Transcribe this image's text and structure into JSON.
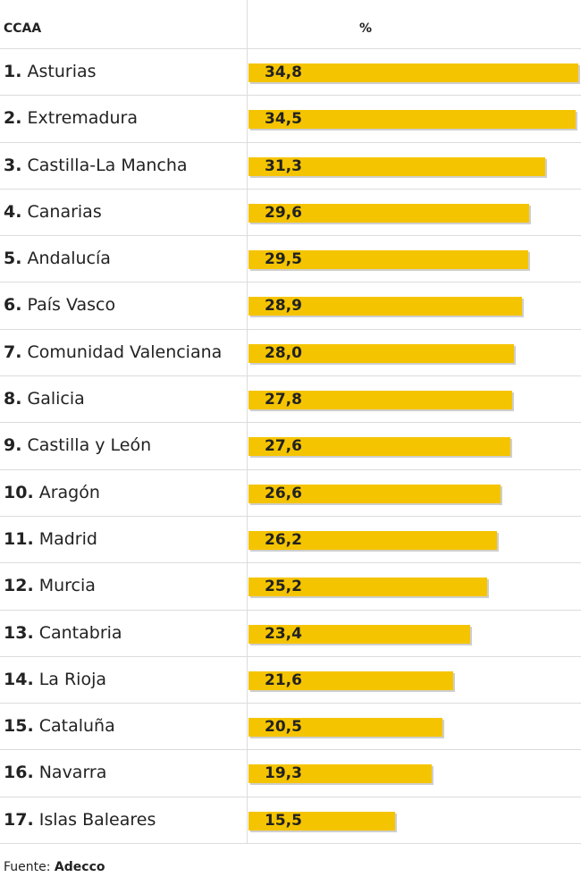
{
  "header": {
    "ccaa_label": "CCAA",
    "percent_label": "%"
  },
  "source": {
    "prefix": "Fuente:",
    "name": "Adecco"
  },
  "colors": {
    "bar": "#f5c400",
    "shadow": "#cfcfcf",
    "divider": "#dcdcdc"
  },
  "chart_data": {
    "type": "bar",
    "orientation": "horizontal",
    "xlim": [
      0,
      34.8
    ],
    "ranks": [
      "1.",
      "2.",
      "3.",
      "4.",
      "5.",
      "6.",
      "7.",
      "8.",
      "9.",
      "10.",
      "11.",
      "12.",
      "13.",
      "14.",
      "15.",
      "16.",
      "17."
    ],
    "categories": [
      "Asturias",
      "Extremadura",
      "Castilla-La Mancha",
      "Canarias",
      "Andalucía",
      "País Vasco",
      "Comunidad Valenciana",
      "Galicia",
      "Castilla y León",
      "Aragón",
      "Madrid",
      "Murcia",
      "Cantabria",
      "La Rioja",
      "Cataluña",
      "Navarra",
      "Islas Baleares"
    ],
    "values": [
      34.8,
      34.5,
      31.3,
      29.6,
      29.5,
      28.9,
      28.0,
      27.8,
      27.6,
      26.6,
      26.2,
      25.2,
      23.4,
      21.6,
      20.5,
      19.3,
      15.5
    ],
    "value_labels": [
      "34,8",
      "34,5",
      "31,3",
      "29,6",
      "29,5",
      "28,9",
      "28,0",
      "27,8",
      "27,6",
      "26,6",
      "26,2",
      "25,2",
      "23,4",
      "21,6",
      "20,5",
      "19,3",
      "15,5"
    ]
  }
}
